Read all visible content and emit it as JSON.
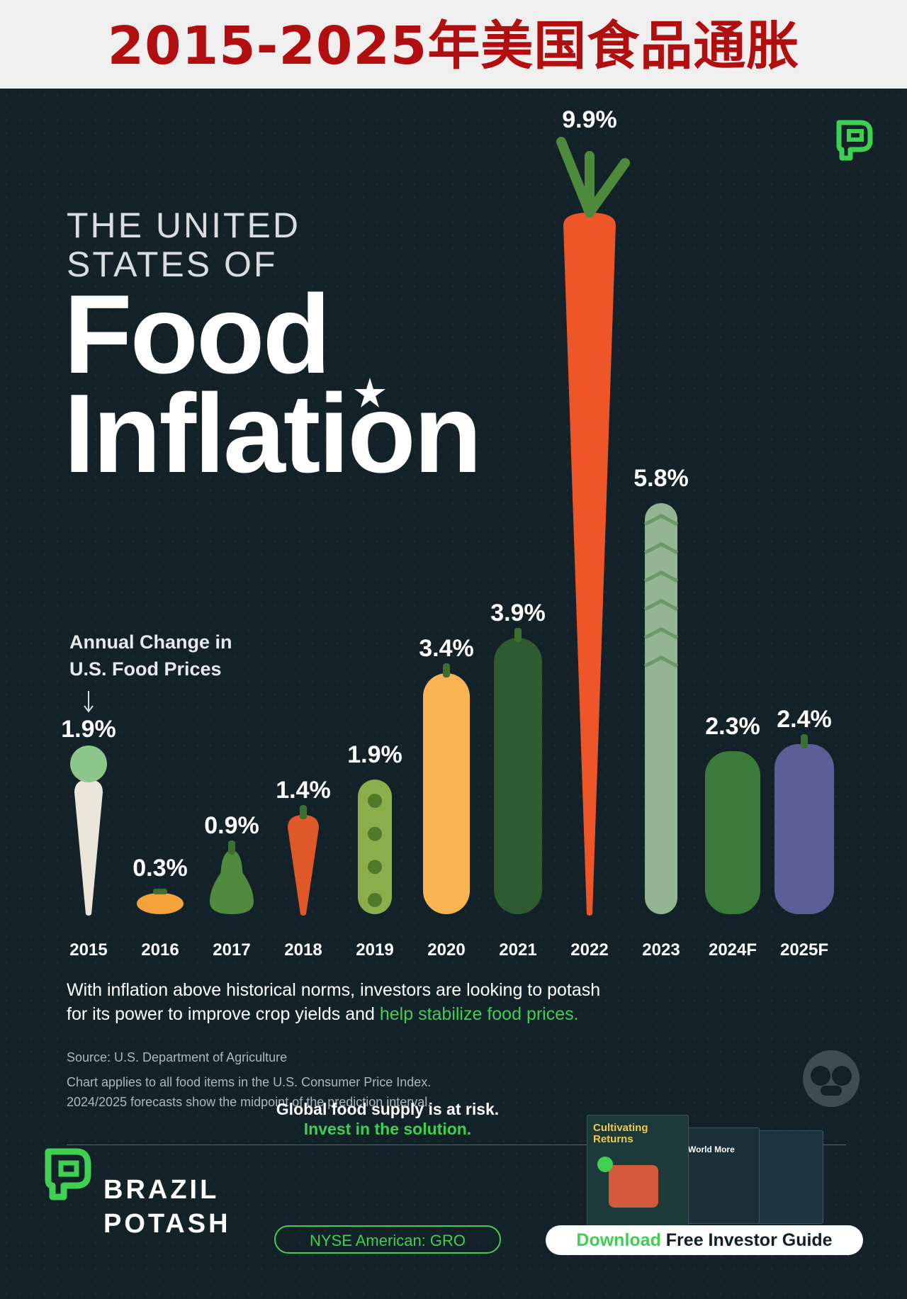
{
  "banner": {
    "title": "2015-2025年美国食品通胀"
  },
  "header": {
    "kicker_line1": "THE UNITED",
    "kicker_line2": "STATES OF",
    "headline_line1": "Food",
    "headline_line2": "Inflation"
  },
  "subtitle": {
    "line1": "Annual Change in",
    "line2": "U.S. Food Prices"
  },
  "chart_data": {
    "type": "bar",
    "title": "Annual Change in U.S. Food Prices",
    "categories": [
      "2015",
      "2016",
      "2017",
      "2018",
      "2019",
      "2020",
      "2021",
      "2022",
      "2023",
      "2024F",
      "2025F"
    ],
    "values": [
      1.9,
      0.3,
      0.9,
      1.4,
      1.9,
      3.4,
      3.9,
      9.9,
      5.8,
      2.3,
      2.4
    ],
    "value_labels": [
      "1.9%",
      "0.3%",
      "0.9%",
      "1.4%",
      "1.9%",
      "3.4%",
      "3.9%",
      "9.9%",
      "5.8%",
      "2.3%",
      "2.4%"
    ],
    "produce": [
      "daikon-radish",
      "tomato",
      "pear",
      "chili-pepper",
      "pea-pod",
      "squash",
      "zucchini",
      "carrot",
      "asparagus",
      "pickle",
      "eggplant"
    ],
    "colors": [
      "#ece6da",
      "#f4a23a",
      "#4f8a3d",
      "#e0582a",
      "#8cae4a",
      "#fbb454",
      "#2f5b30",
      "#ee5528",
      "#93b592",
      "#3c7a3a",
      "#5c5f97"
    ],
    "ylim": [
      0,
      10
    ],
    "grid": false,
    "legend": "none"
  },
  "body": {
    "line1": "With inflation above historical norms, investors are looking to potash",
    "line2_plain": "for its power to improve crop yields and ",
    "line2_highlight": "help stabilize food prices."
  },
  "notes": {
    "source": "Source: U.S. Department of Agriculture",
    "line1": "Chart applies to all food items in the U.S. Consumer Price Index.",
    "line2": "2024/2025 forecasts show the midpoint of the prediction interval."
  },
  "footer": {
    "brand_line1": "BRAZIL",
    "brand_line2": "POTASH",
    "promo_line1": "Global food supply is at risk.",
    "promo_line2": "Invest in the solution.",
    "ticker": "NYSE American: GRO",
    "book_title": "Cultivating Returns",
    "book_side1": "World More",
    "cta_green": "Download",
    "cta_rest": " Free Investor Guide"
  },
  "theme": {
    "background": "#132229",
    "accent": "#3fcf52",
    "banner_text": "#b10f0f"
  }
}
